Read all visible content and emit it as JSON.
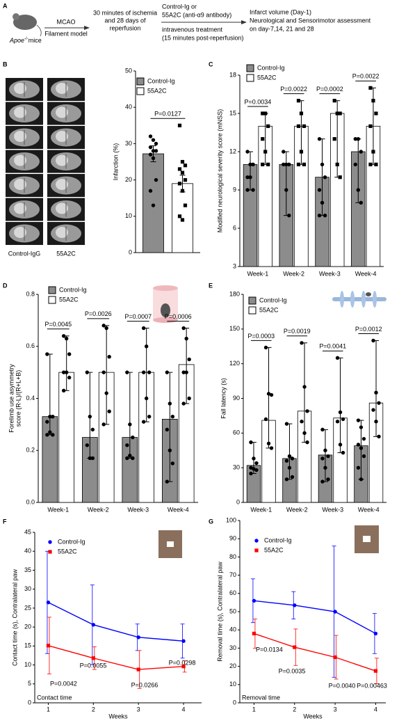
{
  "panel_labels": [
    "A",
    "B",
    "C",
    "D",
    "E",
    "F",
    "G"
  ],
  "workflow": {
    "subject": {
      "gene": "Apoe",
      "genotype": "-/-",
      "suffix": "mice"
    },
    "model": [
      "MCAO",
      "Filament model"
    ],
    "ischemia": [
      "30 minutes of ischemia",
      "and 28 days of",
      "reperfusion"
    ],
    "treatment": [
      "Control-Ig or",
      "55A2C (anti-α9 antibody)"
    ],
    "route": [
      "intravenous treatment",
      "(15 minutes post-reperfusion)"
    ],
    "outcomes": [
      "Infarct volume (Day-1)",
      "Neurological and Sensorimotor assessment",
      "on day-7,14, 21 and 28"
    ]
  },
  "images": {
    "labels": [
      "Control-IgG",
      "55A2C"
    ]
  },
  "chart_data": [
    {
      "type": "bar",
      "y_label": "Infarction (%)",
      "categories": [
        null
      ],
      "ylim": [
        0,
        50
      ],
      "yticks": [
        0,
        10,
        20,
        30,
        40,
        50
      ],
      "p_values": [
        "P=0.0127"
      ],
      "series": [
        {
          "name": "Control-Ig",
          "color": "#8c8c8c",
          "marker": "circle",
          "values": [
            27.2
          ],
          "errors": [
            2.2
          ],
          "points": [
            [
              32,
              31,
              30,
              29,
              28,
              28,
              27,
              26,
              20,
              17,
              13
            ]
          ]
        },
        {
          "name": "55A2C",
          "color": "#ffffff",
          "marker": "square",
          "values": [
            19
          ],
          "errors": [
            2.3
          ],
          "points": [
            [
              35,
              25,
              24,
              23,
              22,
              20,
              19,
              17,
              13,
              10,
              9
            ]
          ]
        }
      ]
    },
    {
      "type": "bar",
      "y_label": "Modified neurological severity score (mNSS)",
      "categories": [
        "Week-1",
        "Week-2",
        "Week-3",
        "Week-4"
      ],
      "ylim": [
        3,
        18
      ],
      "yticks": [
        3,
        6,
        9,
        12,
        15,
        18
      ],
      "p_values": [
        "P=0.0034",
        "P=0.0022",
        "P=0.0002",
        "P=0.0022"
      ],
      "series": [
        {
          "name": "Control-Ig",
          "color": "#8c8c8c",
          "marker": "circle",
          "values": [
            11,
            11,
            10,
            12
          ],
          "min": [
            9,
            7,
            7,
            8
          ],
          "max": [
            12,
            12,
            13,
            13
          ],
          "points": [
            [
              12,
              11,
              11,
              10,
              10,
              9,
              9
            ],
            [
              12,
              11,
              11,
              11,
              9,
              7
            ],
            [
              13,
              11,
              10,
              9,
              8,
              7,
              7
            ],
            [
              13,
              13,
              12,
              11,
              9,
              8
            ]
          ]
        },
        {
          "name": "55A2C",
          "color": "#ffffff",
          "marker": "square",
          "values": [
            14,
            14,
            15,
            14
          ],
          "min": [
            11,
            11,
            10,
            11
          ],
          "max": [
            15,
            16,
            16,
            17
          ],
          "points": [
            [
              15,
              15,
              14,
              13,
              12,
              11,
              11
            ],
            [
              16,
              15,
              14,
              14,
              12,
              11,
              11
            ],
            [
              16,
              15,
              15,
              13,
              11,
              10
            ],
            [
              17,
              16,
              15,
              14,
              12,
              11,
              11
            ]
          ]
        }
      ]
    },
    {
      "type": "bar",
      "y_label": [
        "Forelimb use asymmetry",
        "score (R-L)/(R+L+B)"
      ],
      "categories": [
        "Week-1",
        "Week-2",
        "Week-3",
        "Week-4"
      ],
      "ylim": [
        0,
        0.8
      ],
      "yticks": [
        {
          "value": 0,
          "label": "0.0"
        },
        0.2,
        0.4,
        0.6,
        0.8
      ],
      "p_values": [
        "P=0.0045",
        "P=0.0026",
        "P=0.0007",
        "P=0.0006"
      ],
      "series": [
        {
          "name": "Control-Ig",
          "color": "#8c8c8c",
          "marker": "circle",
          "values": [
            0.33,
            0.25,
            0.25,
            0.32
          ],
          "min": [
            0.26,
            0.17,
            0.17,
            0.08
          ],
          "max": [
            0.57,
            0.5,
            0.5,
            0.5
          ],
          "points": [
            [
              0.57,
              0.33,
              0.33,
              0.31,
              0.27,
              0.26,
              0.26
            ],
            [
              0.5,
              0.33,
              0.28,
              0.22,
              0.17,
              0.17
            ],
            [
              0.5,
              0.3,
              0.25,
              0.22,
              0.18,
              0.17,
              0.17
            ],
            [
              0.5,
              0.38,
              0.33,
              0.28,
              0.2,
              0.15,
              0.08
            ]
          ]
        },
        {
          "name": "55A2C",
          "color": "#ffffff",
          "marker": "circle",
          "values": [
            0.5,
            0.5,
            0.5,
            0.53
          ],
          "min": [
            0.43,
            0.3,
            0.31,
            0.38
          ],
          "max": [
            0.64,
            0.68,
            0.67,
            0.67
          ],
          "points": [
            [
              0.64,
              0.63,
              0.57,
              0.5,
              0.5,
              0.48,
              0.43
            ],
            [
              0.68,
              0.67,
              0.56,
              0.5,
              0.42,
              0.35,
              0.3
            ],
            [
              0.67,
              0.6,
              0.5,
              0.5,
              0.4,
              0.33,
              0.31
            ],
            [
              0.67,
              0.63,
              0.55,
              0.5,
              0.5,
              0.4,
              0.38
            ]
          ]
        }
      ]
    },
    {
      "type": "bar",
      "y_label": "Fall  latency (s)",
      "categories": [
        "Week-1",
        "Week-2",
        "Week-3",
        "Week-4"
      ],
      "ylim": [
        0,
        180
      ],
      "yticks": [
        0,
        30,
        60,
        90,
        120,
        150,
        180
      ],
      "p_values": [
        "P=0.0003",
        "P=0.0019",
        "P=0.0041",
        "P=0.0012"
      ],
      "series": [
        {
          "name": "Control-Ig",
          "color": "#8c8c8c",
          "marker": "circle",
          "values": [
            32,
            38,
            41,
            49
          ],
          "min": [
            25,
            20,
            18,
            20
          ],
          "max": [
            52,
            68,
            63,
            71
          ],
          "points": [
            [
              52,
              38,
              34,
              30,
              29,
              28,
              25
            ],
            [
              68,
              40,
              38,
              36,
              30,
              22,
              20
            ],
            [
              63,
              45,
              40,
              38,
              30,
              20,
              18
            ],
            [
              71,
              65,
              55,
              50,
              47,
              40,
              30,
              20
            ]
          ]
        },
        {
          "name": "55A2C",
          "color": "#ffffff",
          "marker": "circle",
          "values": [
            71,
            79,
            73,
            86
          ],
          "min": [
            47,
            52,
            43,
            57
          ],
          "max": [
            134,
            138,
            125,
            140
          ],
          "points": [
            [
              134,
              94,
              93,
              72,
              51,
              47
            ],
            [
              138,
              100,
              79,
              70,
              60,
              52
            ],
            [
              125,
              78,
              72,
              70,
              50,
              43
            ],
            [
              140,
              95,
              86,
              80,
              70,
              57
            ]
          ]
        }
      ]
    },
    {
      "type": "line",
      "y_label": "Contact time (s), Contralateral paw",
      "x_label": "Weeks",
      "corner_label": "Contact time",
      "x": [
        1,
        2,
        3,
        4
      ],
      "xlim": [
        0.7,
        4.4
      ],
      "xticks": [
        1,
        2,
        3,
        4
      ],
      "ylim": [
        0,
        45
      ],
      "yticks": [
        0,
        5,
        10,
        15,
        20,
        25,
        30,
        35,
        40,
        45
      ],
      "p_values": [
        "P=0.0042",
        "P=0.0055",
        "P=0.0266",
        "P=0.0298"
      ],
      "series": [
        {
          "name": "Control-Ig",
          "color": "#0000ff",
          "marker": "circle",
          "values": [
            26.5,
            20.6,
            17.3,
            16.3
          ],
          "errors": [
            13.5,
            10.5,
            3.5,
            4.5
          ]
        },
        {
          "name": "55A2C",
          "color": "#ff0000",
          "marker": "square",
          "values": [
            15.1,
            11.8,
            8.8,
            9.6
          ],
          "errors": [
            7.5,
            3,
            5,
            1.5
          ]
        }
      ]
    },
    {
      "type": "line",
      "y_label": "Removal time (s), Contralateral paw",
      "x_label": "Weeks",
      "corner_label": "Removal time",
      "x": [
        1,
        2,
        3,
        4
      ],
      "xlim": [
        0.65,
        4.25
      ],
      "xticks": [
        1,
        2,
        3,
        4
      ],
      "ylim": [
        0,
        100
      ],
      "yticks": [
        0,
        10,
        20,
        30,
        40,
        50,
        60,
        70,
        80,
        90,
        100
      ],
      "p_values": [
        "P=0.0134",
        "P=0.0035",
        "P=0.0040",
        "P=0.00463"
      ],
      "series": [
        {
          "name": "Control-Ig",
          "color": "#0000ff",
          "marker": "circle",
          "values": [
            56,
            53.5,
            50,
            38
          ],
          "errors": [
            12,
            7.5,
            36,
            11
          ]
        },
        {
          "name": "55A2C",
          "color": "#ff0000",
          "marker": "square",
          "values": [
            38,
            30.5,
            25,
            17.5
          ],
          "errors": [
            8,
            10,
            12,
            7
          ]
        }
      ]
    }
  ]
}
